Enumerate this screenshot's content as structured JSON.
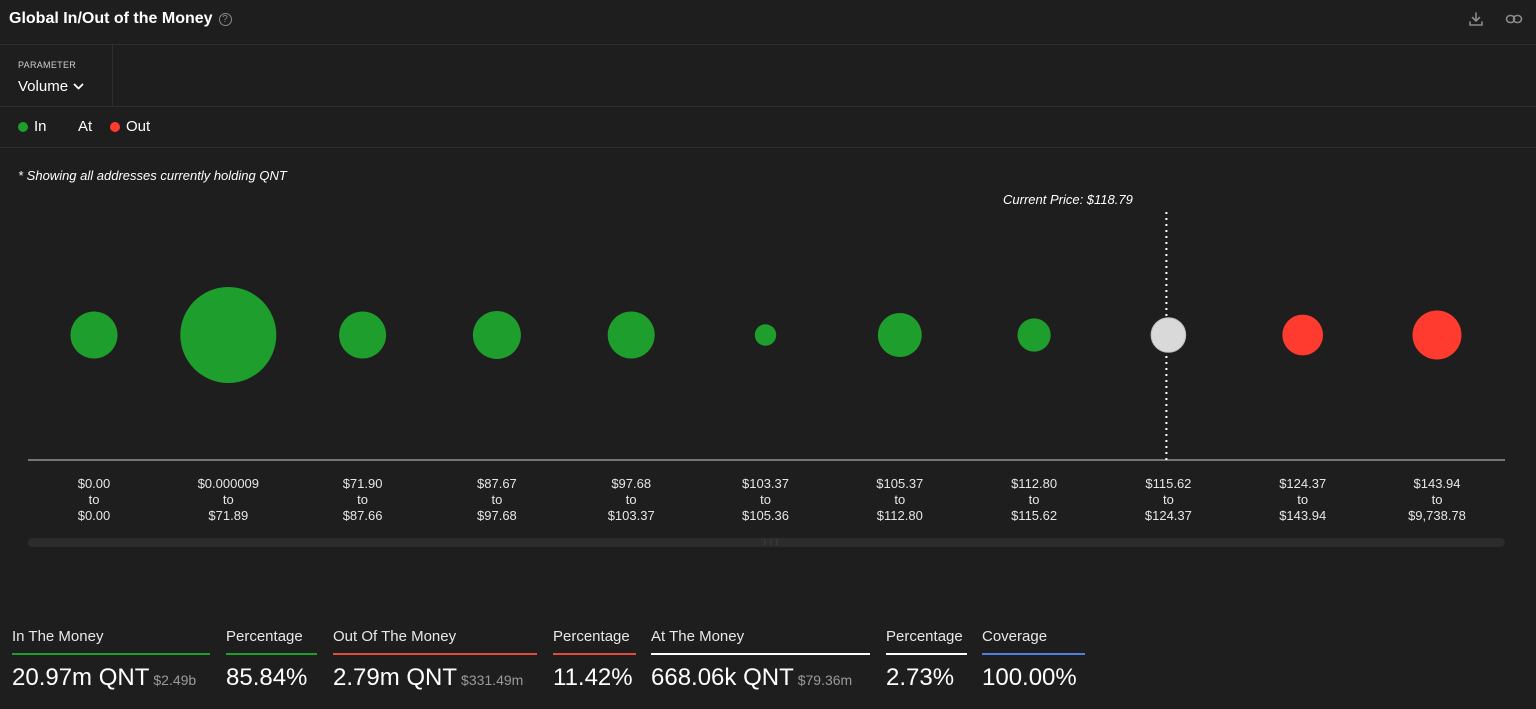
{
  "header": {
    "title": "Global In/Out of the Money",
    "help": "?"
  },
  "parameter": {
    "label": "PARAMETER",
    "value": "Volume"
  },
  "legend": [
    {
      "label": "In",
      "color": "#1e9e2c"
    },
    {
      "label": "At",
      "color": "#d9d9d9"
    },
    {
      "label": "Out",
      "color": "#ff3b30"
    }
  ],
  "note": "* Showing all addresses currently holding QNT",
  "current_price_label": "Current Price: $118.79",
  "chart_data": {
    "type": "bubble",
    "current_price": 118.79,
    "categories": [
      {
        "from": "$0.00",
        "to": "$0.00",
        "status": "in",
        "size": 0.24
      },
      {
        "from": "$0.000009",
        "to": "$71.89",
        "status": "in",
        "size": 1.0
      },
      {
        "from": "$71.90",
        "to": "$87.66",
        "status": "in",
        "size": 0.24
      },
      {
        "from": "$87.67",
        "to": "$97.68",
        "status": "in",
        "size": 0.25
      },
      {
        "from": "$97.68",
        "to": "$103.37",
        "status": "in",
        "size": 0.24
      },
      {
        "from": "$103.37",
        "to": "$105.36",
        "status": "in",
        "size": 0.05
      },
      {
        "from": "$105.37",
        "to": "$112.80",
        "status": "in",
        "size": 0.21
      },
      {
        "from": "$112.80",
        "to": "$115.62",
        "status": "in",
        "size": 0.12
      },
      {
        "from": "$115.62",
        "to": "$124.37",
        "status": "at",
        "size": 0.13
      },
      {
        "from": "$124.37",
        "to": "$143.94",
        "status": "out",
        "size": 0.18
      },
      {
        "from": "$143.94",
        "to": "$9,738.78",
        "status": "out",
        "size": 0.26
      }
    ],
    "connector": "to",
    "colors": {
      "in": "#1e9e2c",
      "at": "#d9d9d9",
      "out": "#ff3b30"
    }
  },
  "stats": [
    {
      "label": "In The Money",
      "value": "20.97m QNT",
      "sub": "$2.49b",
      "color": "#1e9e2c"
    },
    {
      "label": "Percentage",
      "value": "85.84%",
      "sub": "",
      "color": "#1e9e2c"
    },
    {
      "label": "Out Of The Money",
      "value": "2.79m QNT",
      "sub": "$331.49m",
      "color": "#e04a3f"
    },
    {
      "label": "Percentage",
      "value": "11.42%",
      "sub": "",
      "color": "#e04a3f"
    },
    {
      "label": "At The Money",
      "value": "668.06k QNT",
      "sub": "$79.36m",
      "color": "#ffffff"
    },
    {
      "label": "Percentage",
      "value": "2.73%",
      "sub": "",
      "color": "#ffffff"
    },
    {
      "label": "Coverage",
      "value": "100.00%",
      "sub": "",
      "color": "#4f7de0"
    }
  ]
}
